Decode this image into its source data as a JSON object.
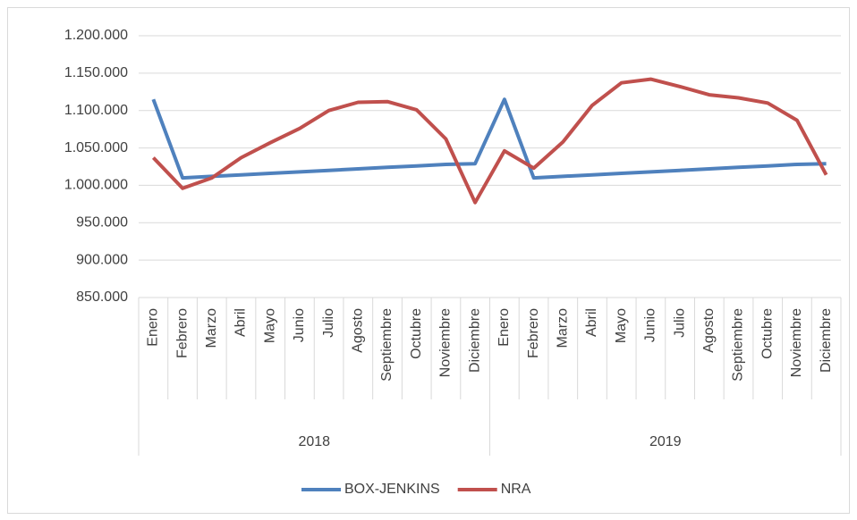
{
  "chart_data": {
    "type": "line",
    "categories": [
      "Enero",
      "Febrero",
      "Marzo",
      "Abril",
      "Mayo",
      "Junio",
      "Julio",
      "Agosto",
      "Septiembre",
      "Octubre",
      "Noviembre",
      "Diciembre",
      "Enero",
      "Febrero",
      "Marzo",
      "Abril",
      "Mayo",
      "Junio",
      "Julio",
      "Agosto",
      "Septiembre",
      "Octubre",
      "Noviembre",
      "Diciembre"
    ],
    "groups": [
      "2018",
      "2019"
    ],
    "series": [
      {
        "name": "BOX-JENKINS",
        "color": "#4f81bd",
        "values": [
          1115000,
          1010000,
          1012000,
          1014000,
          1016000,
          1018000,
          1020000,
          1022000,
          1024000,
          1026000,
          1028000,
          1029000,
          1115000,
          1010000,
          1012000,
          1014000,
          1016000,
          1018000,
          1020000,
          1022000,
          1024000,
          1026000,
          1028000,
          1029000
        ]
      },
      {
        "name": "NRA",
        "color": "#c0504d",
        "values": [
          1037000,
          996000,
          1010000,
          1037000,
          1057000,
          1076000,
          1100000,
          1111000,
          1112000,
          1101000,
          1062000,
          977000,
          1046000,
          1023000,
          1058000,
          1107000,
          1137000,
          1142000,
          1132000,
          1121000,
          1117000,
          1110000,
          1087000,
          1014000
        ]
      }
    ],
    "ylim": [
      850000,
      1200000
    ],
    "yticks": [
      {
        "value": 850000,
        "label": "850.000"
      },
      {
        "value": 900000,
        "label": "900.000"
      },
      {
        "value": 950000,
        "label": "950.000"
      },
      {
        "value": 1000000,
        "label": "1.000.000"
      },
      {
        "value": 1050000,
        "label": "1.050.000"
      },
      {
        "value": 1100000,
        "label": "1.100.000"
      },
      {
        "value": 1150000,
        "label": "1.150.000"
      },
      {
        "value": 1200000,
        "label": "1.200.000"
      }
    ],
    "grid": true,
    "legend": "bottom"
  }
}
